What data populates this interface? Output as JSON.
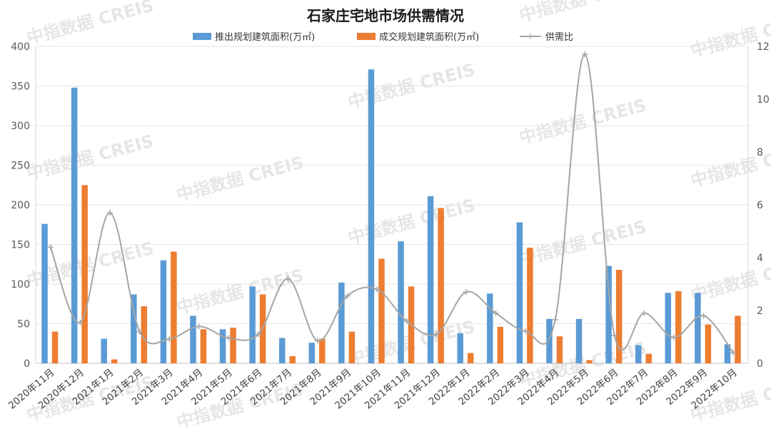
{
  "chart_data": {
    "type": "bar",
    "title": "石家庄宅地市场供需情况",
    "watermark": "中指数据 CREIS",
    "categories": [
      "2020年11月",
      "2020年12月",
      "2021年1月",
      "2021年2月",
      "2021年3月",
      "2021年4月",
      "2021年5月",
      "2021年6月",
      "2021年7月",
      "2021年8月",
      "2021年9月",
      "2021年10月",
      "2021年11月",
      "2021年12月",
      "2022年1月",
      "2022年2月",
      "2022年3月",
      "2022年4月",
      "2022年5月",
      "2022年6月",
      "2022年7月",
      "2022年8月",
      "2022年9月",
      "2022年10月"
    ],
    "series": [
      {
        "name": "推出规划建筑面积(万㎡)",
        "kind": "bar",
        "axis": "left",
        "color": "#5b9bd5",
        "values": [
          176,
          348,
          31,
          87,
          130,
          60,
          43,
          97,
          32,
          26,
          102,
          371,
          154,
          211,
          38,
          88,
          178,
          56,
          56,
          123,
          23,
          89,
          89,
          24
        ]
      },
      {
        "name": "成交规划建筑面积(万㎡)",
        "kind": "bar",
        "axis": "left",
        "color": "#ed7d31",
        "values": [
          40,
          225,
          5,
          72,
          141,
          43,
          45,
          87,
          9,
          31,
          40,
          132,
          97,
          196,
          13,
          46,
          146,
          34,
          4,
          118,
          12,
          91,
          49,
          60
        ]
      },
      {
        "name": "供需比",
        "kind": "line",
        "axis": "right",
        "color": "#a5a5a5",
        "values": [
          4.4,
          1.55,
          5.7,
          1.2,
          0.92,
          1.4,
          0.96,
          1.1,
          3.2,
          0.85,
          2.55,
          2.8,
          1.6,
          1.1,
          2.7,
          1.9,
          1.22,
          1.65,
          11.7,
          1.05,
          1.9,
          0.98,
          1.8,
          0.4
        ]
      }
    ],
    "y_left": {
      "min": 0,
      "max": 400,
      "ticks": [
        0,
        50,
        100,
        150,
        200,
        250,
        300,
        350,
        400
      ]
    },
    "y_right": {
      "min": 0,
      "max": 12,
      "ticks": [
        0,
        2,
        4,
        6,
        8,
        10,
        12
      ]
    },
    "grid": true,
    "legend_position": "top"
  }
}
